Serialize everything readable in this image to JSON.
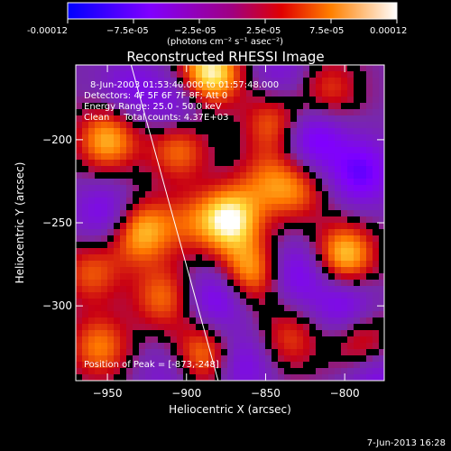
{
  "colorbar": {
    "tick_labels": [
      "-0.00012",
      "−7.5e-05",
      "−2.5e-05",
      "2.5e-05",
      "7.5e-05",
      "0.00012"
    ],
    "unit_label": "(photons cm⁻² s⁻¹ asec⁻²)",
    "range": [
      -0.00012,
      0.00012
    ]
  },
  "plot": {
    "title": "Reconstructed RHESSI Image",
    "info_lines": [
      "8-Jun-2003 01:53:40.000 to 01:57:48.000",
      "Detectors: 4F 5F 6F 7F 8F; Att 0",
      "Energy Range: 25.0 - 50.0 keV",
      "Clean     Total counts: 4.37E+03"
    ],
    "peak_label": "Position of Peak = [-873,-248]",
    "x_label": "Heliocentric X (arcsec)",
    "y_label": "Heliocentric Y (arcsec)"
  },
  "timestamp": "7-Jun-2013 16:28",
  "chart_data": {
    "type": "heatmap",
    "title": "Reconstructed RHESSI Image",
    "xlabel": "Heliocentric X (arcsec)",
    "ylabel": "Heliocentric Y (arcsec)",
    "x_ticks": [
      -950,
      -900,
      -850,
      -800
    ],
    "y_ticks": [
      -200,
      -250,
      -300
    ],
    "xlim": [
      -970,
      -775
    ],
    "ylim": [
      -345,
      -155
    ],
    "peak": {
      "x": -873,
      "y": -248
    },
    "colorbar_range": [
      -0.00012,
      0.00012
    ],
    "limb_line": [
      [
        -935,
        -155
      ],
      [
        -880,
        -345
      ]
    ],
    "blobs": [
      {
        "x": -885,
        "y": -160,
        "v": 1.0
      },
      {
        "x": -873,
        "y": -248,
        "v": 0.95
      },
      {
        "x": -950,
        "y": -200,
        "v": 0.75
      },
      {
        "x": -930,
        "y": -255,
        "v": 0.8
      },
      {
        "x": -905,
        "y": -205,
        "v": 0.6
      },
      {
        "x": -890,
        "y": -330,
        "v": 0.7
      },
      {
        "x": -860,
        "y": -280,
        "v": 0.75
      },
      {
        "x": -845,
        "y": -190,
        "v": 0.55
      },
      {
        "x": -830,
        "y": -230,
        "v": 0.5
      },
      {
        "x": -800,
        "y": -270,
        "v": 0.85
      },
      {
        "x": -790,
        "y": -320,
        "v": 0.5
      },
      {
        "x": -955,
        "y": -325,
        "v": 0.6
      },
      {
        "x": -915,
        "y": -295,
        "v": 0.55
      },
      {
        "x": -835,
        "y": -320,
        "v": 0.45
      },
      {
        "x": -810,
        "y": -170,
        "v": 0.45
      },
      {
        "x": -960,
        "y": -280,
        "v": 0.5
      },
      {
        "x": -900,
        "y": -250,
        "v": 0.35
      },
      {
        "x": -850,
        "y": -225,
        "v": 0.4
      },
      {
        "x": -820,
        "y": -200,
        "v": -0.6
      },
      {
        "x": -950,
        "y": -245,
        "v": -0.5
      },
      {
        "x": -880,
        "y": -295,
        "v": -0.55
      },
      {
        "x": -790,
        "y": -220,
        "v": -0.6
      },
      {
        "x": -830,
        "y": -280,
        "v": -0.5
      },
      {
        "x": -905,
        "y": -180,
        "v": -0.4
      },
      {
        "x": -865,
        "y": -335,
        "v": -0.45
      },
      {
        "x": -935,
        "y": -170,
        "v": -0.35
      },
      {
        "x": -800,
        "y": -300,
        "v": -0.55
      },
      {
        "x": -910,
        "y": -340,
        "v": -0.3
      },
      {
        "x": -780,
        "y": -345,
        "v": -0.4
      },
      {
        "x": -840,
        "y": -160,
        "v": -0.3
      }
    ]
  }
}
